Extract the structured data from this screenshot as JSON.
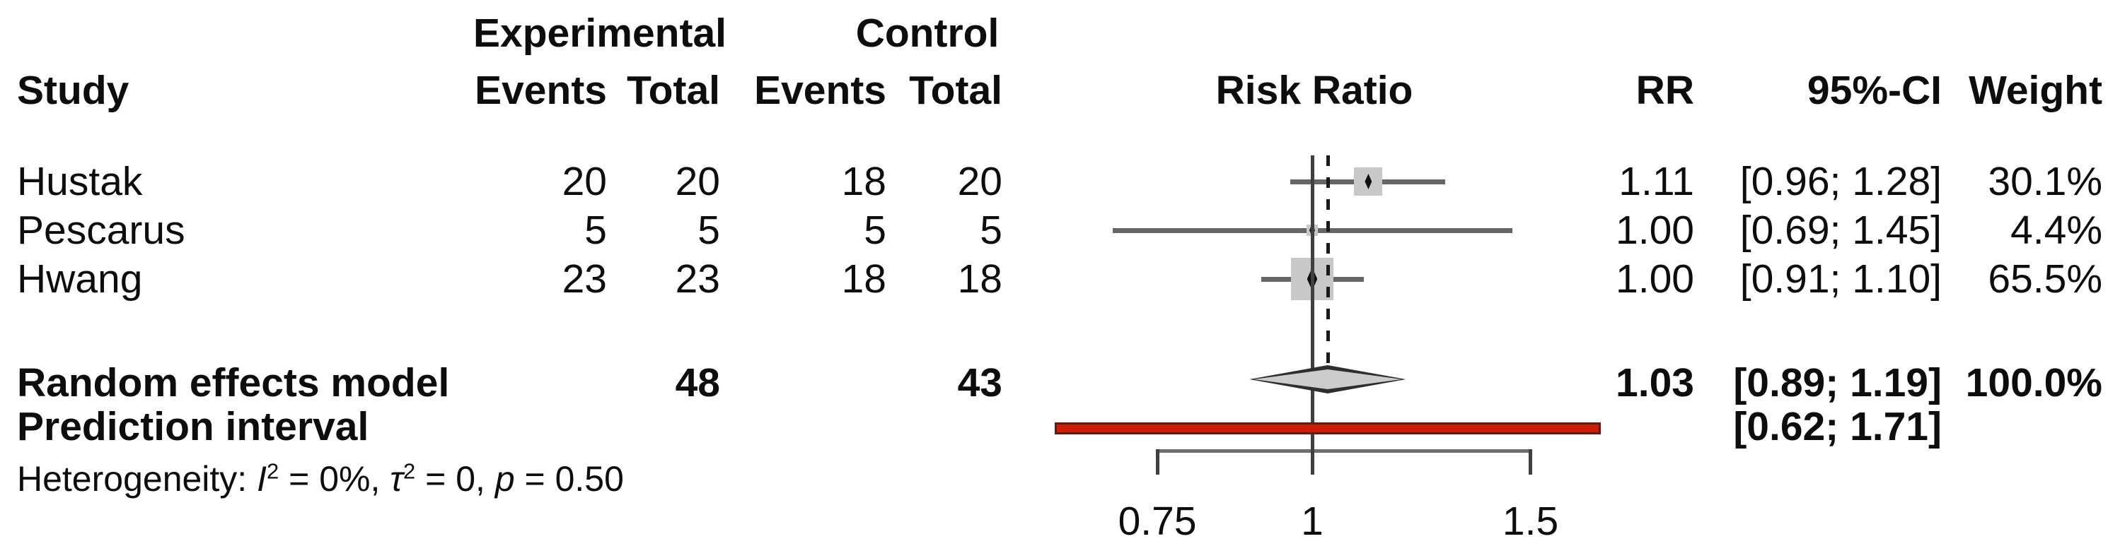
{
  "header": {
    "study": "Study",
    "group_experimental": "Experimental",
    "group_control": "Control",
    "exp_events": "Events",
    "exp_total": "Total",
    "ctrl_events": "Events",
    "ctrl_total": "Total",
    "plot_title": "Risk Ratio",
    "rr": "RR",
    "ci": "95%-CI",
    "weight": "Weight"
  },
  "rows": [
    {
      "study": "Hustak",
      "exp_events": "20",
      "exp_total": "20",
      "ctrl_events": "18",
      "ctrl_total": "20",
      "rr_text": "1.11",
      "ci_text": "[0.96; 1.28]",
      "weight_text": "30.1%"
    },
    {
      "study": "Pescarus",
      "exp_events": "5",
      "exp_total": "5",
      "ctrl_events": "5",
      "ctrl_total": "5",
      "rr_text": "1.00",
      "ci_text": "[0.69; 1.45]",
      "weight_text": "4.4%"
    },
    {
      "study": "Hwang",
      "exp_events": "23",
      "exp_total": "23",
      "ctrl_events": "18",
      "ctrl_total": "18",
      "rr_text": "1.00",
      "ci_text": "[0.91; 1.10]",
      "weight_text": "65.5%"
    }
  ],
  "summary": {
    "random_label": "Random effects model",
    "random_exp_total": "48",
    "random_ctrl_total": "43",
    "random_rr": "1.03",
    "random_ci": "[0.89; 1.19]",
    "random_weight": "100.0%",
    "prediction_label": "Prediction interval",
    "prediction_ci": "[0.62; 1.71]"
  },
  "heterogeneity": {
    "p0": "Heterogeneity: ",
    "p1": "I",
    "p2": "2",
    "p3": " = 0%, ",
    "p4": "τ",
    "p5": "2",
    "p6": " = 0, ",
    "p7": "p",
    "p8": " = 0.50"
  },
  "colors": {
    "ci_line": "#666666",
    "square_fill": "#c8c8c8",
    "point_marker": "#0f0f0f",
    "diamond_fill": "#cccccc",
    "diamond_border": "#2e2e2e",
    "prediction_bar": "#cc1d08",
    "null_line": "#404040",
    "axis_line": "#6e6e6e"
  },
  "chart_data": {
    "type": "forest",
    "title": "Risk Ratio",
    "x_scale": "log",
    "x_ticks": [
      0.75,
      1,
      1.5
    ],
    "x_tick_labels": [
      "0.75",
      "1",
      "1.5"
    ],
    "null_value": 1,
    "pooled_effect_line": 1.03,
    "studies": [
      {
        "name": "Hustak",
        "exp_events": 20,
        "exp_total": 20,
        "ctrl_events": 18,
        "ctrl_total": 20,
        "rr": 1.11,
        "ci_low": 0.96,
        "ci_high": 1.28,
        "weight_pct": 30.1
      },
      {
        "name": "Pescarus",
        "exp_events": 5,
        "exp_total": 5,
        "ctrl_events": 5,
        "ctrl_total": 5,
        "rr": 1.0,
        "ci_low": 0.69,
        "ci_high": 1.45,
        "weight_pct": 4.4
      },
      {
        "name": "Hwang",
        "exp_events": 23,
        "exp_total": 23,
        "ctrl_events": 18,
        "ctrl_total": 18,
        "rr": 1.0,
        "ci_low": 0.91,
        "ci_high": 1.1,
        "weight_pct": 65.5
      }
    ],
    "random_effects_model": {
      "exp_total": 48,
      "ctrl_total": 43,
      "rr": 1.03,
      "ci_low": 0.89,
      "ci_high": 1.19,
      "weight_pct": 100.0
    },
    "prediction_interval": {
      "low": 0.62,
      "high": 1.71
    },
    "heterogeneity": {
      "I2": "0%",
      "tau2": "0",
      "p": "0.50"
    },
    "legend_position": "none",
    "grid": false
  }
}
